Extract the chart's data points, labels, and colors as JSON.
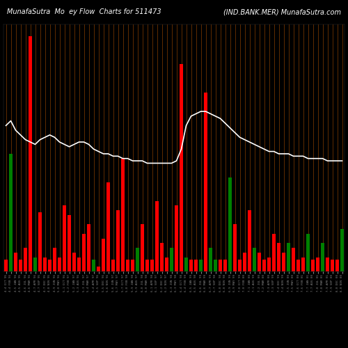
{
  "title_left": "MunafaSutra  Mo  ey Flow  Charts for 511473",
  "title_right": "(IND.BANK.MER) MunafaSutra.com",
  "background_color": "#000000",
  "bar_colors": [
    "red",
    "green",
    "red",
    "red",
    "red",
    "red",
    "green",
    "red",
    "red",
    "red",
    "red",
    "red",
    "red",
    "red",
    "red",
    "red",
    "red",
    "red",
    "green",
    "red",
    "red",
    "red",
    "red",
    "red",
    "red",
    "red",
    "red",
    "green",
    "red",
    "red",
    "red",
    "red",
    "red",
    "red",
    "green",
    "red",
    "red",
    "green",
    "red",
    "red",
    "green",
    "red",
    "green",
    "green",
    "red",
    "red",
    "green",
    "red",
    "red",
    "red",
    "red",
    "green",
    "red",
    "red",
    "red",
    "red",
    "red",
    "red",
    "green",
    "red",
    "red",
    "red",
    "green",
    "red",
    "red",
    "green",
    "red",
    "red",
    "red",
    "green"
  ],
  "bar_heights": [
    0.05,
    0.5,
    0.08,
    0.05,
    0.1,
    1.0,
    0.06,
    0.25,
    0.06,
    0.05,
    0.1,
    0.06,
    0.28,
    0.24,
    0.08,
    0.06,
    0.16,
    0.2,
    0.05,
    0.02,
    0.14,
    0.38,
    0.05,
    0.26,
    0.48,
    0.05,
    0.05,
    0.1,
    0.2,
    0.05,
    0.05,
    0.3,
    0.12,
    0.06,
    0.1,
    0.28,
    0.88,
    0.06,
    0.05,
    0.05,
    0.05,
    0.76,
    0.1,
    0.05,
    0.05,
    0.05,
    0.4,
    0.2,
    0.05,
    0.08,
    0.26,
    0.1,
    0.08,
    0.05,
    0.06,
    0.16,
    0.12,
    0.08,
    0.12,
    0.1,
    0.05,
    0.06,
    0.16,
    0.05,
    0.06,
    0.12,
    0.06,
    0.05,
    0.05,
    0.18
  ],
  "line_values": [
    0.62,
    0.64,
    0.6,
    0.58,
    0.56,
    0.55,
    0.54,
    0.56,
    0.57,
    0.58,
    0.57,
    0.55,
    0.54,
    0.53,
    0.54,
    0.55,
    0.55,
    0.54,
    0.52,
    0.51,
    0.5,
    0.5,
    0.49,
    0.49,
    0.48,
    0.48,
    0.47,
    0.47,
    0.47,
    0.46,
    0.46,
    0.46,
    0.46,
    0.46,
    0.46,
    0.47,
    0.52,
    0.62,
    0.66,
    0.67,
    0.68,
    0.68,
    0.67,
    0.66,
    0.65,
    0.63,
    0.61,
    0.59,
    0.57,
    0.56,
    0.55,
    0.54,
    0.53,
    0.52,
    0.51,
    0.51,
    0.5,
    0.5,
    0.5,
    0.49,
    0.49,
    0.49,
    0.48,
    0.48,
    0.48,
    0.48,
    0.47,
    0.47,
    0.47,
    0.47
  ],
  "grid_color": "#7B3800",
  "line_color": "#ffffff",
  "n_bars": 70,
  "ylim": [
    0,
    1.05
  ],
  "figsize": [
    5.0,
    5.0
  ],
  "dpi": 100
}
